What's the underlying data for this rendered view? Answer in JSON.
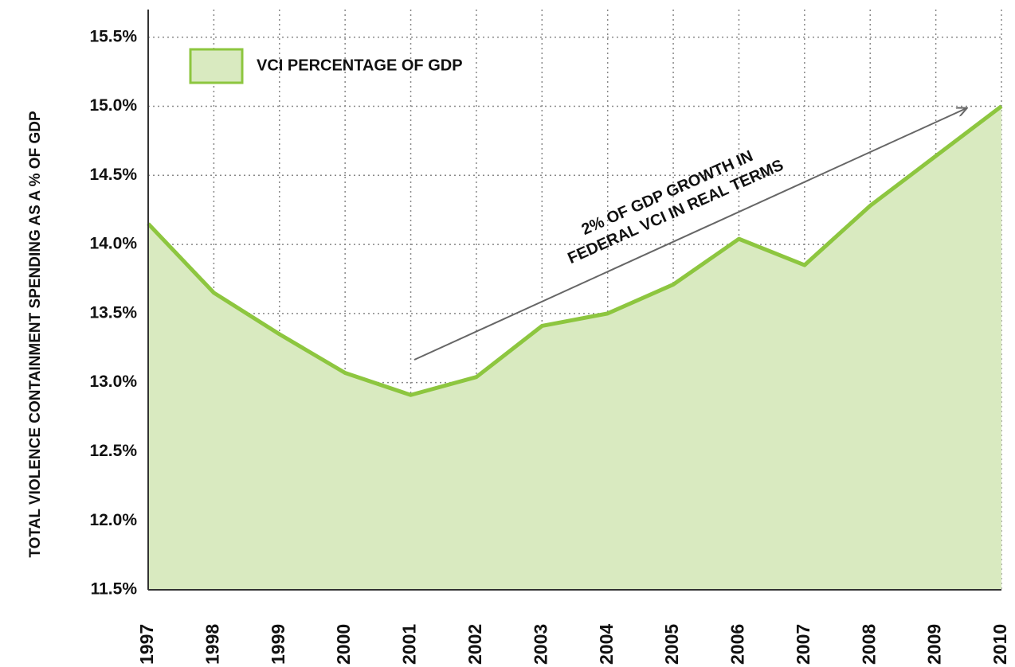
{
  "chart_data": {
    "type": "area",
    "y_axis_label": "TOTAL VIOLENCE CONTAINMENT SPENDING AS A % OF GDP",
    "annotation": [
      "2% OF GDP GROWTH IN",
      "FEDERAL VCI IN REAL TERMS"
    ],
    "categories": [
      "1997",
      "1998",
      "1999",
      "2000",
      "2001",
      "2002",
      "2003",
      "2004",
      "2005",
      "2006",
      "2007",
      "2008",
      "2009",
      "2010"
    ],
    "series": [
      {
        "name": "VCI PERCENTAGE OF GDP",
        "color": "#8dc63f",
        "fill": "#d9eac0",
        "values": [
          14.15,
          13.65,
          13.35,
          13.07,
          12.91,
          13.04,
          13.41,
          13.5,
          13.71,
          14.04,
          13.85,
          14.28,
          14.64,
          15.0
        ]
      }
    ],
    "ylim": [
      11.5,
      15.7
    ],
    "yticks": [
      {
        "value": 11.5,
        "label": "11.5%"
      },
      {
        "value": 12.0,
        "label": "12.0%"
      },
      {
        "value": 12.5,
        "label": "12.5%"
      },
      {
        "value": 13.0,
        "label": "13.0%"
      },
      {
        "value": 13.5,
        "label": "13.5%"
      },
      {
        "value": 14.0,
        "label": "14.0%"
      },
      {
        "value": 14.5,
        "label": "14.5%"
      },
      {
        "value": 15.0,
        "label": "15.0%"
      },
      {
        "value": 15.5,
        "label": "15.5%"
      }
    ],
    "grid": true,
    "legend": "upper left"
  }
}
